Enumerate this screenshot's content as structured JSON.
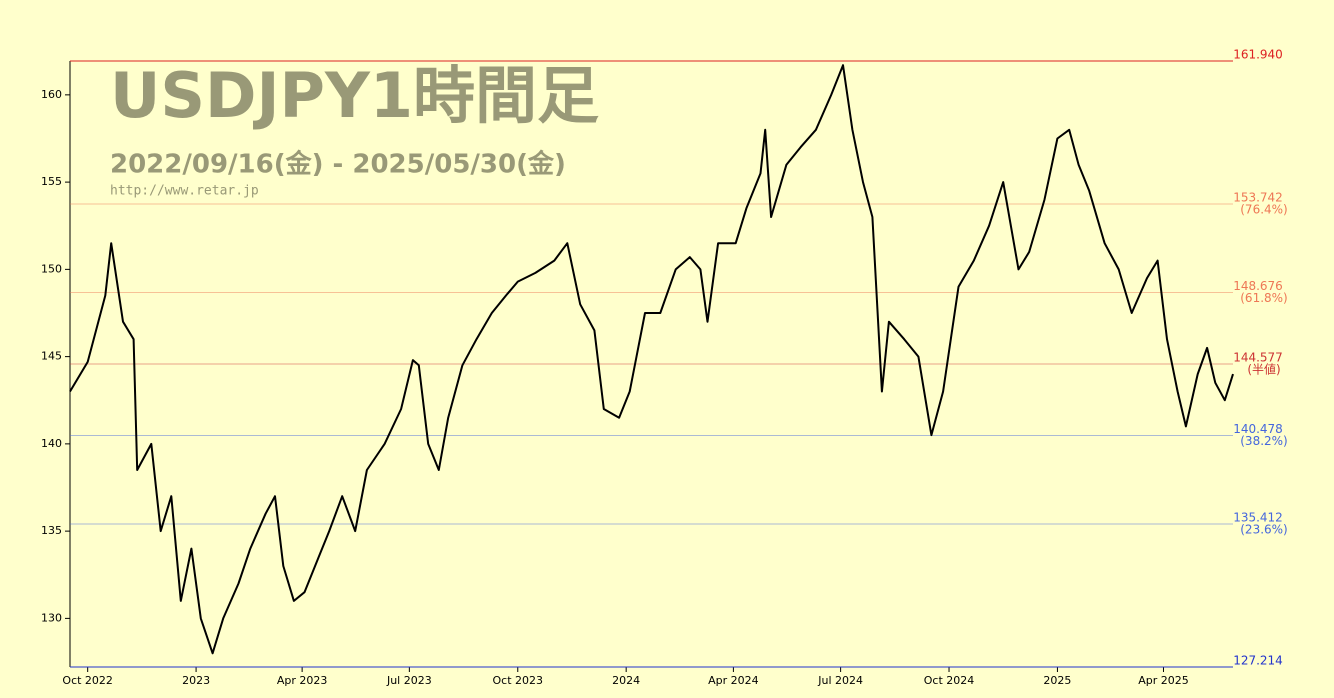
{
  "chart_data": {
    "type": "line",
    "title": "USDJPY1時間足",
    "subtitle": "2022/09/16(金) - 2025/05/30(金)",
    "source": "http://www.retar.jp",
    "color": "#000000",
    "x": [
      "2022-09-16",
      "2022-10-01",
      "2022-10-16",
      "2022-10-21",
      "2022-10-31",
      "2022-11-09",
      "2022-11-12",
      "2022-11-24",
      "2022-12-02",
      "2022-12-11",
      "2022-12-19",
      "2022-12-28",
      "2023-01-05",
      "2023-01-15",
      "2023-01-24",
      "2023-02-06",
      "2023-02-16",
      "2023-03-01",
      "2023-03-09",
      "2023-03-16",
      "2023-03-25",
      "2023-04-03",
      "2023-04-15",
      "2023-04-24",
      "2023-05-05",
      "2023-05-16",
      "2023-05-26",
      "2023-06-10",
      "2023-06-24",
      "2023-07-04",
      "2023-07-09",
      "2023-07-17",
      "2023-07-26",
      "2023-08-03",
      "2023-08-15",
      "2023-08-27",
      "2023-09-09",
      "2023-09-21",
      "2023-10-01",
      "2023-10-16",
      "2023-11-01",
      "2023-11-12",
      "2023-11-23",
      "2023-12-05",
      "2023-12-13",
      "2023-12-26",
      "2024-01-04",
      "2024-01-17",
      "2024-01-30",
      "2024-02-12",
      "2024-02-24",
      "2024-03-04",
      "2024-03-10",
      "2024-03-19",
      "2024-04-03",
      "2024-04-12",
      "2024-04-24",
      "2024-04-28",
      "2024-05-03",
      "2024-05-16",
      "2024-05-28",
      "2024-06-10",
      "2024-06-23",
      "2024-07-03",
      "2024-07-11",
      "2024-07-20",
      "2024-07-28",
      "2024-08-05",
      "2024-08-11",
      "2024-08-24",
      "2024-09-05",
      "2024-09-16",
      "2024-09-26",
      "2024-10-09",
      "2024-10-22",
      "2024-11-04",
      "2024-11-16",
      "2024-11-29",
      "2024-12-08",
      "2024-12-21",
      "2025-01-01",
      "2025-01-11",
      "2025-01-19",
      "2025-01-28",
      "2025-02-10",
      "2025-02-22",
      "2025-03-05",
      "2025-03-18",
      "2025-03-27",
      "2025-04-04",
      "2025-04-13",
      "2025-04-20",
      "2025-04-30",
      "2025-05-08",
      "2025-05-15",
      "2025-05-23",
      "2025-05-30"
    ],
    "values": [
      143.0,
      144.7,
      148.5,
      151.5,
      147.0,
      146.0,
      138.5,
      140.0,
      135.0,
      137.0,
      131.0,
      134.0,
      130.0,
      128.0,
      130.0,
      132.0,
      134.0,
      136.0,
      137.0,
      133.0,
      131.0,
      131.5,
      133.5,
      135.0,
      137.0,
      135.0,
      138.5,
      140.0,
      142.0,
      144.8,
      144.5,
      140.0,
      138.5,
      141.5,
      144.5,
      146.0,
      147.5,
      148.5,
      149.3,
      149.8,
      150.5,
      151.5,
      148.0,
      146.5,
      142.0,
      141.5,
      143.0,
      147.5,
      147.5,
      150.0,
      150.7,
      150.0,
      147.0,
      151.5,
      151.5,
      153.5,
      155.5,
      158.0,
      153.0,
      156.0,
      157.0,
      158.0,
      160.0,
      161.7,
      158.0,
      155.0,
      153.0,
      143.0,
      147.0,
      146.0,
      145.0,
      140.5,
      143.0,
      149.0,
      150.5,
      152.5,
      155.0,
      150.0,
      151.0,
      154.0,
      157.5,
      158.0,
      156.0,
      154.5,
      151.5,
      150.0,
      147.5,
      149.5,
      150.5,
      146.0,
      143.0,
      141.0,
      144.0,
      145.5,
      143.5,
      142.5,
      144.0
    ],
    "xlim": [
      "2022-09-16",
      "2025-05-30"
    ],
    "xticks": [
      {
        "value": "2022-10-01",
        "label": "Oct 2022"
      },
      {
        "value": "2023-01-01",
        "label": "2023"
      },
      {
        "value": "2023-04-01",
        "label": "Apr 2023"
      },
      {
        "value": "2023-07-01",
        "label": "Jul 2023"
      },
      {
        "value": "2023-10-01",
        "label": "Oct 2023"
      },
      {
        "value": "2024-01-01",
        "label": "2024"
      },
      {
        "value": "2024-04-01",
        "label": "Apr 2024"
      },
      {
        "value": "2024-07-01",
        "label": "Jul 2024"
      },
      {
        "value": "2024-10-01",
        "label": "Oct 2024"
      },
      {
        "value": "2025-01-01",
        "label": "2025"
      },
      {
        "value": "2025-04-01",
        "label": "Apr 2025"
      }
    ],
    "ylim": [
      127.214,
      161.94
    ],
    "yticks": [
      130,
      135,
      140,
      145,
      150,
      155,
      160
    ],
    "levels": [
      {
        "value": 161.94,
        "label": "161.940",
        "color": "#dd2222"
      },
      {
        "value": 153.742,
        "label": "153.742",
        "note": "(76.4%)",
        "color": "#ee7755"
      },
      {
        "value": 148.676,
        "label": "148.676",
        "note": "(61.8%)",
        "color": "#ee7755"
      },
      {
        "value": 144.577,
        "label": "144.577",
        "note": "(半値)",
        "color": "#cc3333"
      },
      {
        "value": 140.478,
        "label": "140.478",
        "note": "(38.2%)",
        "color": "#4466dd"
      },
      {
        "value": 135.412,
        "label": "135.412",
        "note": "(23.6%)",
        "color": "#4466dd"
      },
      {
        "value": 127.214,
        "label": "127.214",
        "color": "#2233cc"
      }
    ]
  }
}
